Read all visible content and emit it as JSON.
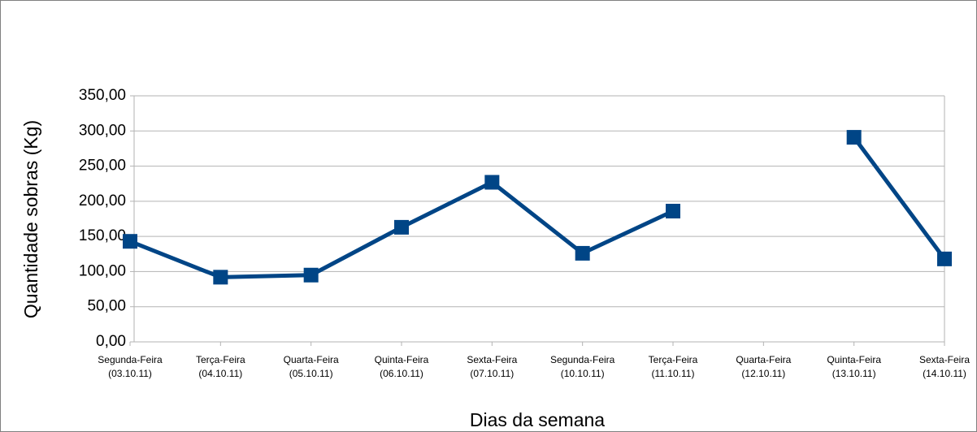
{
  "chart_data": {
    "type": "line",
    "x_label": "Dias da semana",
    "y_label": "Quantidade sobras (Kg)",
    "categories": [
      [
        "Segunda-Feira",
        "(03.10.11)"
      ],
      [
        "Terça-Feira",
        "(04.10.11)"
      ],
      [
        "Quarta-Feira",
        "(05.10.11)"
      ],
      [
        "Quinta-Feira",
        "(06.10.11)"
      ],
      [
        "Sexta-Feira",
        "(07.10.11)"
      ],
      [
        "Segunda-Feira",
        "(10.10.11)"
      ],
      [
        "Terça-Feira",
        "(11.10.11)"
      ],
      [
        "Quarta-Feira",
        "(12.10.11)"
      ],
      [
        "Quinta-Feira",
        "(13.10.11)"
      ],
      [
        "Sexta-Feira",
        "(14.10.11)"
      ]
    ],
    "series": [
      {
        "name": "Quantidade sobras",
        "color": "#004586",
        "values": [
          143,
          92,
          95,
          163,
          227,
          126,
          186,
          null,
          291,
          118
        ]
      }
    ],
    "ylim": [
      0,
      350
    ],
    "yticks": [
      {
        "value": 0,
        "label": "0,00"
      },
      {
        "value": 50,
        "label": "50,00"
      },
      {
        "value": 100,
        "label": "100,00"
      },
      {
        "value": 150,
        "label": "150,00"
      },
      {
        "value": 200,
        "label": "200,00"
      },
      {
        "value": 250,
        "label": "250,00"
      },
      {
        "value": 300,
        "label": "300,00"
      },
      {
        "value": 350,
        "label": "350,00"
      }
    ],
    "grid": true
  }
}
